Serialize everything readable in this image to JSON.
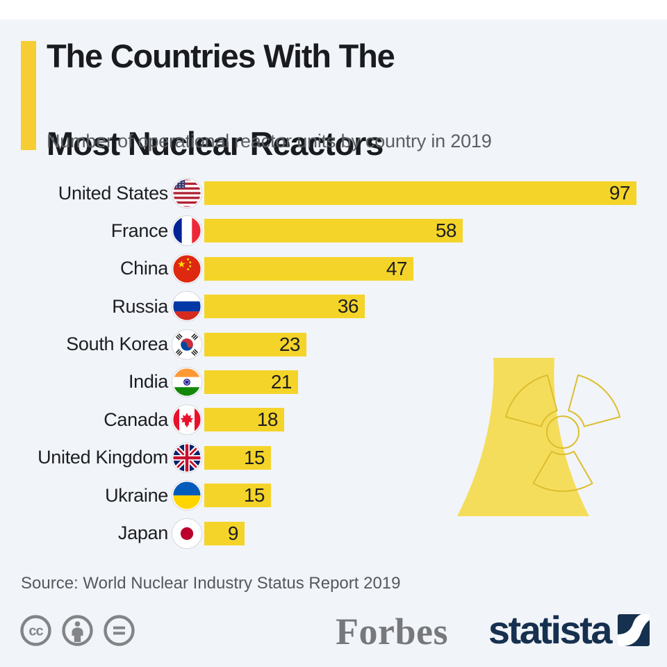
{
  "page": {
    "background": "#F1F4F8",
    "top_strip_color": "#FFFFFF"
  },
  "header": {
    "title_line1": "The Countries With The",
    "title_line2": "Most Nuclear Reactors",
    "subtitle": "Number of operational reactor units by country in 2019",
    "accent_color": "#F6CE33"
  },
  "chart_data": {
    "type": "bar",
    "orientation": "horizontal",
    "title": "The Countries With The Most Nuclear Reactors",
    "subtitle": "Number of operational reactor units by country in 2019",
    "categories": [
      "United States",
      "France",
      "China",
      "Russia",
      "South Korea",
      "India",
      "Canada",
      "United Kingdom",
      "Ukraine",
      "Japan"
    ],
    "values": [
      97,
      58,
      47,
      36,
      23,
      21,
      18,
      15,
      15,
      9
    ],
    "flags": [
      "us",
      "fr",
      "cn",
      "ru",
      "kr",
      "in",
      "ca",
      "gb",
      "ua",
      "jp"
    ],
    "xlim": [
      0,
      97
    ],
    "bar_color": "#F4D429",
    "value_label_position": "inside-right",
    "grid": false,
    "legend": false,
    "xlabel": "",
    "ylabel": ""
  },
  "illustration": {
    "name": "nuclear-cooling-tower-with-radiation-symbol",
    "tower_fill": "#F5DD5C",
    "symbol_stroke": "#DCBE2E"
  },
  "source": {
    "text": "Source: World Nuclear Industry Status Report 2019"
  },
  "footer": {
    "license_icons": [
      "cc",
      "attribution",
      "no-derivatives"
    ],
    "brands": [
      {
        "name": "Forbes",
        "color": "#77787B"
      },
      {
        "name": "statista",
        "color": "#16304F"
      }
    ]
  }
}
